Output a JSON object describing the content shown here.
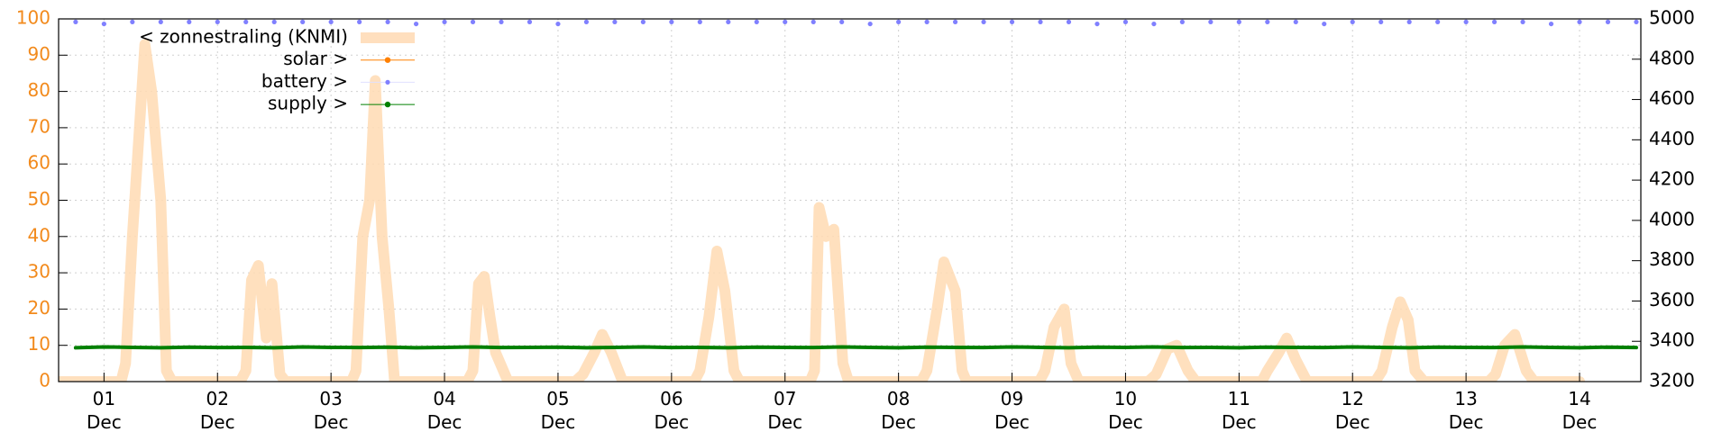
{
  "chart_data": {
    "type": "line",
    "xlim": [
      0.6,
      14.54
    ],
    "xticks": [
      {
        "value": 1,
        "label": "01\nDec"
      },
      {
        "value": 2,
        "label": "02\nDec"
      },
      {
        "value": 3,
        "label": "03\nDec"
      },
      {
        "value": 4,
        "label": "04\nDec"
      },
      {
        "value": 5,
        "label": "05\nDec"
      },
      {
        "value": 6,
        "label": "06\nDec"
      },
      {
        "value": 7,
        "label": "07\nDec"
      },
      {
        "value": 8,
        "label": "08\nDec"
      },
      {
        "value": 9,
        "label": "09\nDec"
      },
      {
        "value": 10,
        "label": "10\nDec"
      },
      {
        "value": 11,
        "label": "11\nDec"
      },
      {
        "value": 12,
        "label": "12\nDec"
      },
      {
        "value": 13,
        "label": "13\nDec"
      },
      {
        "value": 14,
        "label": "14\nDec"
      }
    ],
    "ylim": [
      0,
      100
    ],
    "yticks": [
      0,
      10,
      20,
      30,
      40,
      50,
      60,
      70,
      80,
      90,
      100
    ],
    "ytick_color": "#f28a1c",
    "y2lim": [
      3200,
      5000
    ],
    "y2ticks": [
      3200,
      3400,
      3600,
      3800,
      4000,
      4200,
      4400,
      4600,
      4800,
      5000
    ],
    "grid": true,
    "legend": "upper left",
    "series": [
      {
        "name": "< zonnestraling (KNMI)",
        "color": "#ffdab3",
        "style": "thick-line",
        "axis": "y",
        "x": [
          0.6,
          1.15,
          1.19,
          1.25,
          1.36,
          1.42,
          1.5,
          1.55,
          1.6,
          2.2,
          2.25,
          2.3,
          2.36,
          2.43,
          2.48,
          2.55,
          2.6,
          3.18,
          3.22,
          3.28,
          3.34,
          3.39,
          3.45,
          3.51,
          3.56,
          4.2,
          4.25,
          4.3,
          4.35,
          4.4,
          4.45,
          4.56,
          5.15,
          5.22,
          5.32,
          5.39,
          5.47,
          5.57,
          6.2,
          6.25,
          6.33,
          6.4,
          6.47,
          6.55,
          6.6,
          7.22,
          7.26,
          7.3,
          7.36,
          7.43,
          7.51,
          7.56,
          8.2,
          8.25,
          8.34,
          8.4,
          8.5,
          8.56,
          8.6,
          9.24,
          9.29,
          9.37,
          9.46,
          9.52,
          9.59,
          10.2,
          10.27,
          10.37,
          10.45,
          10.55,
          10.62,
          11.2,
          11.25,
          11.35,
          11.42,
          11.5,
          11.6,
          12.2,
          12.26,
          12.35,
          12.42,
          12.49,
          12.55,
          12.63,
          13.2,
          13.26,
          13.34,
          13.43,
          13.53,
          13.6,
          14.0
        ],
        "values": [
          0,
          0,
          5,
          40,
          93,
          80,
          50,
          3,
          0,
          0,
          3,
          28,
          32,
          12,
          27,
          2,
          0,
          0,
          3,
          40,
          50,
          83,
          40,
          20,
          0,
          0,
          3,
          27,
          29,
          18,
          8,
          0,
          0,
          2,
          8,
          13,
          8,
          0,
          0,
          3,
          18,
          36,
          25,
          3,
          0,
          0,
          3,
          48,
          40,
          42,
          5,
          0,
          0,
          3,
          20,
          33,
          25,
          3,
          0,
          0,
          3,
          15,
          20,
          5,
          0,
          0,
          2,
          9,
          10,
          3,
          0,
          0,
          3,
          8,
          12,
          6,
          0,
          0,
          3,
          15,
          22,
          17,
          3,
          0,
          0,
          2,
          10,
          13,
          3,
          0,
          0
        ]
      },
      {
        "name": "solar >",
        "color": "#ff8000",
        "style": "linespoints",
        "axis": "y2",
        "x": [
          0.75,
          14.5
        ],
        "values": [
          null,
          null
        ]
      },
      {
        "name": "battery >",
        "color": "#8080ff",
        "style": "points",
        "axis": "y2",
        "x": [
          0.75,
          1,
          1.25,
          1.5,
          1.75,
          2,
          2.25,
          2.5,
          2.75,
          3,
          3.25,
          3.5,
          3.75,
          4,
          4.25,
          4.5,
          4.75,
          5,
          5.25,
          5.5,
          5.75,
          6,
          6.25,
          6.5,
          6.75,
          7,
          7.25,
          7.5,
          7.75,
          8,
          8.25,
          8.5,
          8.75,
          9,
          9.25,
          9.5,
          9.75,
          10,
          10.25,
          10.5,
          10.75,
          11,
          11.25,
          11.5,
          11.75,
          12,
          12.25,
          12.5,
          12.75,
          13,
          13.25,
          13.5,
          13.75,
          14,
          14.25,
          14.5
        ],
        "values": [
          4985,
          4975,
          4985,
          4985,
          4985,
          4985,
          4985,
          4985,
          4985,
          4985,
          4985,
          4985,
          4975,
          4985,
          4985,
          4985,
          4985,
          4975,
          4985,
          4985,
          4985,
          4985,
          4985,
          4985,
          4985,
          4985,
          4985,
          4985,
          4975,
          4985,
          4985,
          4985,
          4985,
          4985,
          4985,
          4985,
          4975,
          4985,
          4975,
          4985,
          4985,
          4985,
          4985,
          4985,
          4975,
          4985,
          4985,
          4985,
          4985,
          4985,
          4985,
          4985,
          4975,
          4985,
          4985,
          4985
        ]
      },
      {
        "name": "supply >",
        "color": "#008000",
        "style": "linespoints",
        "axis": "y2",
        "x": [
          0.75,
          1,
          1.25,
          1.5,
          1.75,
          2,
          2.25,
          2.5,
          2.75,
          3,
          3.25,
          3.5,
          3.75,
          4,
          4.25,
          4.5,
          4.75,
          5,
          5.25,
          5.5,
          5.75,
          6,
          6.25,
          6.5,
          6.75,
          7,
          7.25,
          7.5,
          7.75,
          8,
          8.25,
          8.5,
          8.75,
          9,
          9.25,
          9.5,
          9.75,
          10,
          10.25,
          10.5,
          10.75,
          11,
          11.25,
          11.5,
          11.75,
          12,
          12.25,
          12.5,
          12.75,
          13,
          13.25,
          13.5,
          13.75,
          14,
          14.25,
          14.5
        ],
        "values": [
          3368,
          3372,
          3370,
          3368,
          3371,
          3369,
          3370,
          3368,
          3372,
          3370,
          3369,
          3371,
          3368,
          3370,
          3372,
          3369,
          3370,
          3371,
          3368,
          3370,
          3372,
          3369,
          3370,
          3368,
          3371,
          3370,
          3369,
          3372,
          3370,
          3368,
          3371,
          3370,
          3369,
          3372,
          3370,
          3368,
          3371,
          3370,
          3372,
          3369,
          3370,
          3368,
          3371,
          3370,
          3369,
          3372,
          3370,
          3368,
          3371,
          3370,
          3369,
          3372,
          3370,
          3368,
          3371,
          3369
        ]
      }
    ]
  }
}
